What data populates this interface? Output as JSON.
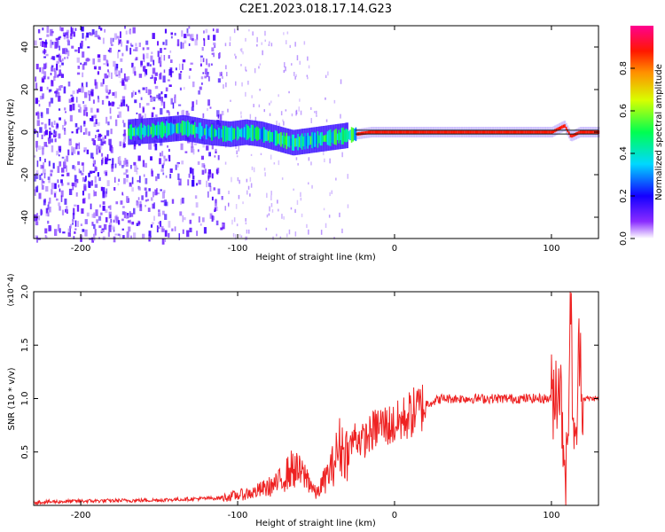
{
  "figure": {
    "title": "C2E1.2023.018.17.14.G23"
  },
  "chart_data": [
    {
      "type": "heatmap",
      "title": "C2E1.2023.018.17.14.G23",
      "xlabel": "Height of straight line (km)",
      "ylabel": "Frequency (Hz)",
      "xlim": [
        -230,
        130
      ],
      "ylim": [
        -50,
        50
      ],
      "xticks": [
        -200,
        -100,
        0,
        100
      ],
      "yticks": [
        -40,
        -20,
        0,
        20,
        40
      ],
      "colorbar": {
        "label": "Normalized spectral amplitude",
        "range": [
          0,
          1
        ],
        "ticks": [
          0.0,
          0.2,
          0.4,
          0.6,
          0.8
        ],
        "colormap": [
          "#ffffff",
          "#5a00ff",
          "#0000ff",
          "#00e0ff",
          "#00ff40",
          "#ffff00",
          "#ff8000",
          "#ff0000",
          "#ff0080"
        ]
      },
      "ridge": {
        "x": [
          -170,
          -150,
          -135,
          -120,
          -105,
          -95,
          -85,
          -75,
          -65,
          -55,
          -45,
          -35,
          -25,
          -15,
          -5,
          5,
          50,
          100,
          108,
          112,
          118,
          130
        ],
        "y": [
          0,
          1,
          2,
          0,
          -1,
          0,
          -1,
          -3,
          -5,
          -4,
          -3,
          -2,
          -1,
          0,
          0,
          0,
          0,
          0,
          3,
          -2,
          0,
          0
        ]
      },
      "noise_region_km": [
        -230,
        -110
      ]
    },
    {
      "type": "line",
      "title": "",
      "xlabel": "Height of straight line (km)",
      "ylabel": "SNR (10 * v/v)",
      "y_multiplier": "(x10^4)",
      "xlim": [
        -230,
        130
      ],
      "ylim": [
        0,
        20000
      ],
      "xticks": [
        -200,
        -100,
        0,
        100
      ],
      "yticks": [
        5000,
        10000,
        15000,
        20000
      ],
      "ytick_labels": [
        "0.5",
        "1.0",
        "1.5",
        "2.0"
      ],
      "series": [
        {
          "color": "#ee2222",
          "x": [
            -230,
            -200,
            -150,
            -110,
            -90,
            -75,
            -65,
            -55,
            -50,
            -40,
            -35,
            -30,
            -25,
            -20,
            -10,
            0,
            10,
            20,
            30,
            50,
            70,
            90,
            100,
            105,
            110,
            112,
            115,
            118,
            120,
            130
          ],
          "y": [
            300,
            400,
            500,
            700,
            1200,
            2000,
            3500,
            2500,
            1000,
            3500,
            5500,
            5000,
            6500,
            6000,
            7500,
            7500,
            8500,
            9500,
            10000,
            10000,
            10000,
            10000,
            10000,
            12000,
            2000,
            19500,
            3000,
            16000,
            10000,
            10000
          ]
        }
      ]
    }
  ]
}
